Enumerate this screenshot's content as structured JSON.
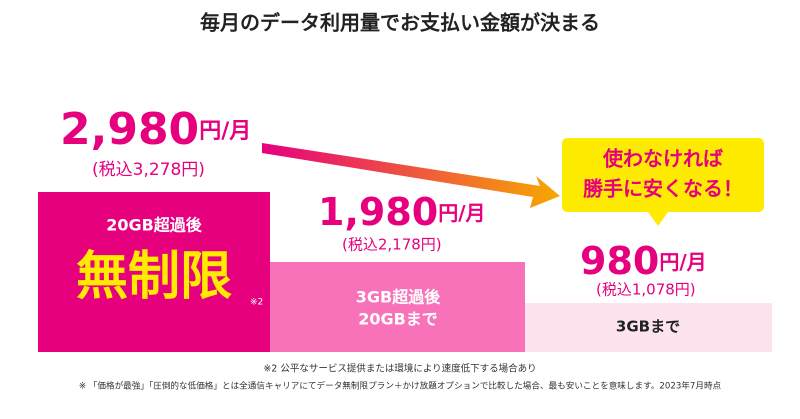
{
  "title": "毎月のデータ利用量でお支払い金額が決まる",
  "tiers": [
    {
      "price": "2,980",
      "unit": "円/月",
      "tax": "(税込3,278円)",
      "lines": [
        "20GB超過後",
        "無制限"
      ],
      "note": "※2"
    },
    {
      "price": "1,980",
      "unit": "円/月",
      "tax": "(税込2,178円)",
      "lines": [
        "3GB超過後",
        "20GBまで"
      ]
    },
    {
      "price": "980",
      "unit": "円/月",
      "tax": "(税込1,078円)",
      "lines": [
        "3GBまで"
      ]
    }
  ],
  "callout": [
    "使わなければ",
    "勝手に安くなる！"
  ],
  "footnotes": [
    "※2 公平なサービス提供または環境により速度低下する場合あり",
    "※ 「価格が最強」「圧倒的な低価格」とは全通信キャリアにてデータ無制限プラン＋かけ放題オプションで比較した場合、最も安いことを意味します。2023年7月時点"
  ]
}
